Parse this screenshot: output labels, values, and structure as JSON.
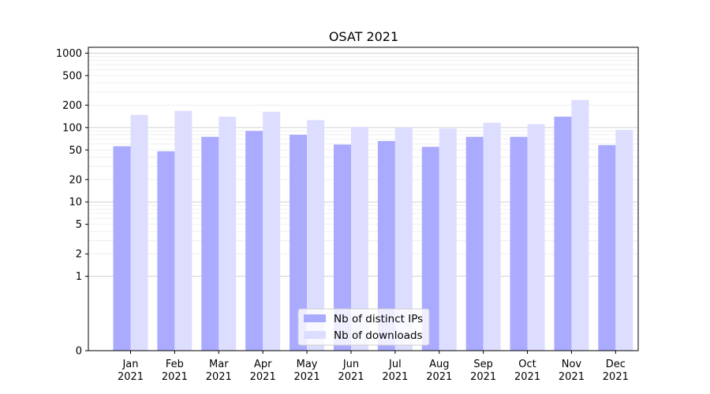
{
  "chart_data": {
    "type": "bar",
    "title": "OSAT 2021",
    "xlabel": "",
    "ylabel": "",
    "y_scale": "symlog",
    "ylim": [
      0,
      1200
    ],
    "categories": [
      [
        "Jan",
        "2021"
      ],
      [
        "Feb",
        "2021"
      ],
      [
        "Mar",
        "2021"
      ],
      [
        "Apr",
        "2021"
      ],
      [
        "May",
        "2021"
      ],
      [
        "Jun",
        "2021"
      ],
      [
        "Jul",
        "2021"
      ],
      [
        "Aug",
        "2021"
      ],
      [
        "Sep",
        "2021"
      ],
      [
        "Oct",
        "2021"
      ],
      [
        "Nov",
        "2021"
      ],
      [
        "Dec",
        "2021"
      ]
    ],
    "y_ticks": [
      0,
      1,
      2,
      5,
      10,
      20,
      50,
      100,
      200,
      500,
      1000
    ],
    "grid": true,
    "legend_position": "bottom-center",
    "series": [
      {
        "name": "Nb of distinct IPs",
        "color": "#aaaaff",
        "values": [
          56,
          48,
          75,
          90,
          80,
          59,
          66,
          55,
          75,
          75,
          140,
          58
        ]
      },
      {
        "name": "Nb of downloads",
        "color": "#ddddff",
        "values": [
          148,
          168,
          140,
          163,
          126,
          102,
          100,
          97,
          116,
          111,
          235,
          93
        ]
      }
    ]
  }
}
